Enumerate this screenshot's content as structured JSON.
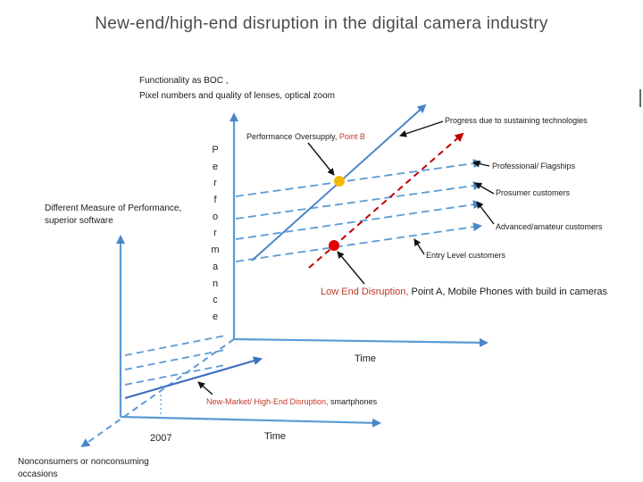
{
  "title": "New-end/high-end disruption in the digital camera industry",
  "labels": {
    "functionality_line1": "Functionality as BOC ,",
    "functionality_line2": "Pixel numbers and quality of lenses, optical zoom",
    "different_measure_line1": "Different  Measure of Performance,",
    "different_measure_line2": "superior software",
    "performance_vertical": [
      "P",
      "e",
      "r",
      "f",
      "o",
      "r",
      "m",
      "a",
      "n",
      "c",
      "e"
    ],
    "point_b_prefix": "Performance Oversupply, ",
    "point_b_suffix": "Point B",
    "progress": "Progress due to sustaining technologies",
    "professional": "Professional/ Flagships",
    "prosumer": "Prosumer customers",
    "advanced": "Advanced/amateur customers",
    "entry": "Entry Level customers",
    "low_end_black": "Low End Disruption,",
    "low_end_red": " Point A, Mobile Phones with build in cameras",
    "time_upper": "Time",
    "time_lower": "Time",
    "year": "2007",
    "new_market_red": "New-Market/ High-End Disruption,",
    "new_market_black": " smartphones",
    "nonconsumers_line1": "Nonconsumers or nonconsuming",
    "nonconsumers_line2": "occasions"
  },
  "colors": {
    "axis": "#5b9bd5",
    "dark_blue": "#3c6fc0",
    "red_dashed": "#c00000",
    "point_a": "#e00000",
    "point_b": "#f5b800",
    "arrow": "#111111"
  }
}
